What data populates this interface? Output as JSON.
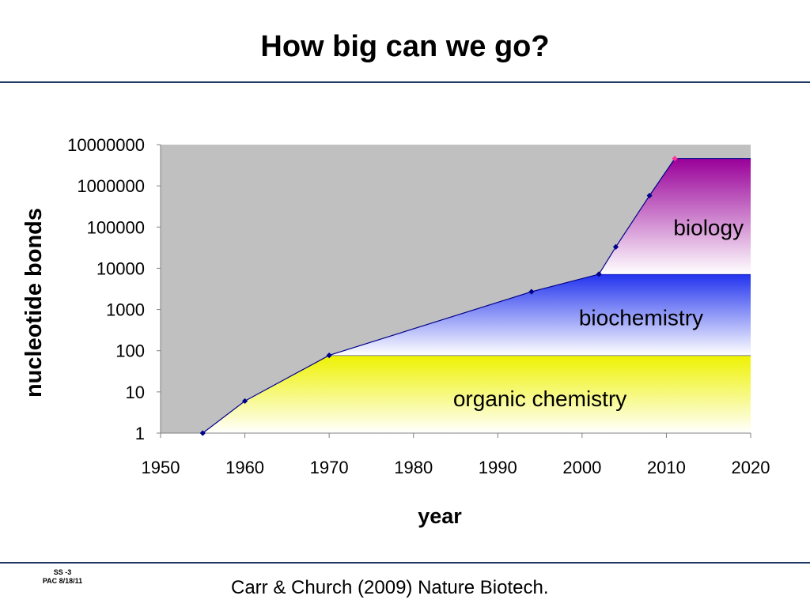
{
  "slide": {
    "title": "How big can we go?",
    "citation": "Carr & Church (2009) Nature Biotech.",
    "footer_code_line1": "SS -3",
    "footer_code_line2": "PAC 8/18/11"
  },
  "chart_data": {
    "type": "area",
    "title": "",
    "xlabel": "year",
    "ylabel": "nucleotide bonds",
    "xlim": [
      1950,
      2020
    ],
    "ylim": [
      1,
      10000000
    ],
    "yscale": "log",
    "grid": false,
    "x_ticks": [
      1950,
      1960,
      1970,
      1980,
      1990,
      2000,
      2010,
      2020
    ],
    "y_ticks": [
      1,
      10,
      100,
      1000,
      10000,
      100000,
      1000000,
      10000000
    ],
    "y_tick_labels": [
      "1",
      "10",
      "100",
      "1000",
      "10000",
      "100000",
      "1000000",
      "10000000"
    ],
    "series": [
      {
        "points": [
          {
            "x": 1955,
            "y": 1
          },
          {
            "x": 1960,
            "y": 6
          },
          {
            "x": 1970,
            "y": 77
          },
          {
            "x": 1994,
            "y": 2700
          },
          {
            "x": 2002,
            "y": 7200
          },
          {
            "x": 2004,
            "y": 33000
          },
          {
            "x": 2008,
            "y": 580000
          },
          {
            "x": 2011,
            "y": 4600000
          }
        ],
        "color": "#00008b",
        "last_point_color": "#ff3399"
      }
    ],
    "regions": [
      {
        "label": "organic chemistry",
        "y_top": 77,
        "x_start": 1970,
        "color_top": "#eef200",
        "label_x": 1995,
        "label_y": 7
      },
      {
        "label": "biochemistry",
        "y_top": 7200,
        "x_start": 2002,
        "color_top": "#2233ee",
        "label_x": 2007,
        "label_y": 650
      },
      {
        "label": "biology",
        "y_top": 4600000,
        "x_start": 2011,
        "color_top": "#990099",
        "label_x": 2015,
        "label_y": 100000
      }
    ],
    "plot_background": "#c0c0c0"
  }
}
